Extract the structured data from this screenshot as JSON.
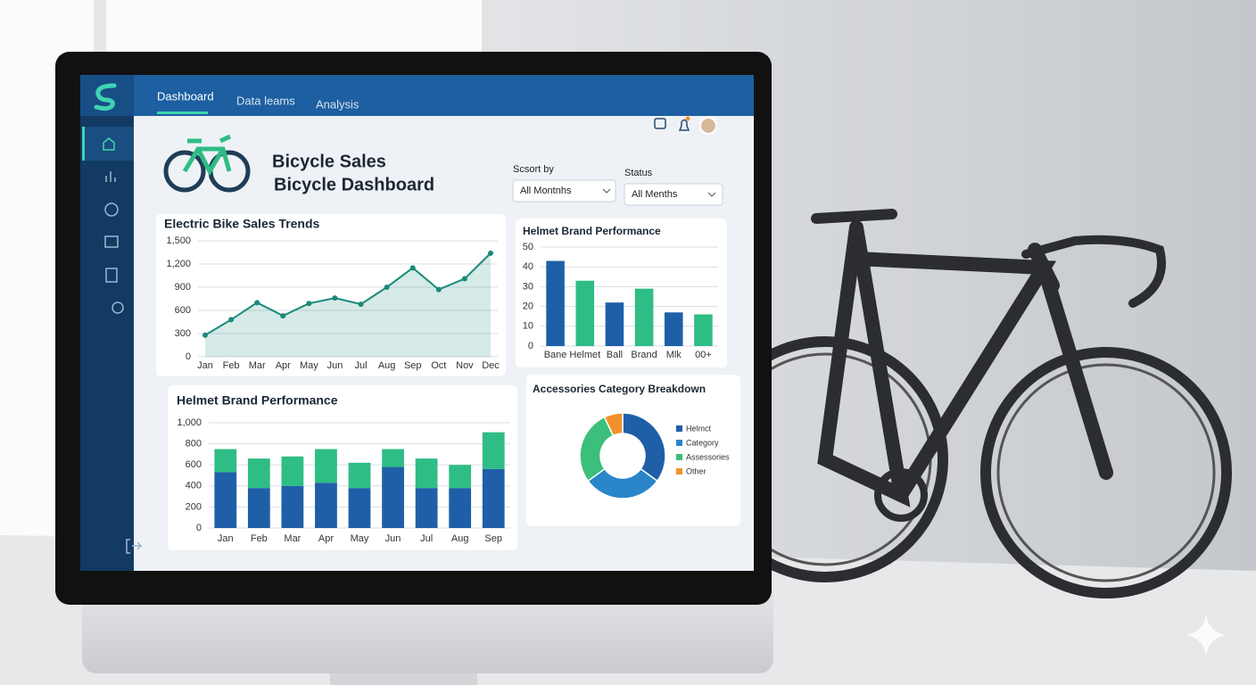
{
  "nav": {
    "tabs": [
      "Dashboard",
      "Data leams",
      "Analysis"
    ]
  },
  "header": {
    "title": "Bicycle Sales",
    "subtitle": "Bicycle Dashboard"
  },
  "filters": [
    {
      "label": "Scsort by",
      "value": "All Montnhs"
    },
    {
      "label": "Status",
      "value": "All Menths"
    }
  ],
  "chart_data": [
    {
      "type": "area",
      "title": "Electric Bike Sales Trends",
      "color": "#1b8a7a",
      "categories": [
        "Jan",
        "Feb",
        "Mar",
        "Apr",
        "May",
        "Jun",
        "Jul",
        "Aug",
        "Sep",
        "Oct",
        "Nov",
        "Dec"
      ],
      "values": [
        280,
        480,
        700,
        530,
        690,
        760,
        680,
        900,
        1150,
        870,
        1010,
        1340
      ],
      "ylim": [
        0,
        1500
      ],
      "yticks": [
        0,
        300,
        600,
        900,
        {
          "value": 1200,
          "label": "1,200"
        },
        {
          "value": 1500,
          "label": "1,500"
        }
      ],
      "grid": true
    },
    {
      "type": "bar",
      "title": "Helmet Brand Performance",
      "categories": [
        "Bane",
        "Helmet",
        "Ball",
        "Brand",
        "Mlk",
        "00+"
      ],
      "values": [
        43,
        33,
        22,
        29,
        17,
        16
      ],
      "colors": [
        "#1f5fa8",
        "#2ebd85",
        "#1f5fa8",
        "#2ebd85",
        "#1f5fa8",
        "#2ebd85"
      ],
      "ylim": [
        0,
        50
      ],
      "yticks": [
        0,
        10,
        20,
        30,
        40,
        50
      ],
      "grid": true
    },
    {
      "type": "stacked-bar",
      "title": "Helmet Brand Performance",
      "categories": [
        "Jan",
        "Feb",
        "Mar",
        "Apr",
        "May",
        "Jun",
        "Jul",
        "Aug",
        "Sep"
      ],
      "series": [
        {
          "color": "#1f5fa8",
          "values": [
            530,
            380,
            400,
            430,
            380,
            580,
            380,
            380,
            560
          ]
        },
        {
          "color": "#2ebd85",
          "values": [
            220,
            280,
            280,
            320,
            240,
            170,
            280,
            220,
            350
          ]
        }
      ],
      "ylim": [
        0,
        1000
      ],
      "yticks": [
        0,
        200,
        400,
        600,
        800,
        {
          "value": 1000,
          "label": "1,000"
        }
      ],
      "grid": true
    },
    {
      "type": "donut",
      "title": "Accessories Category Breakdown",
      "categories": [
        "Helmct",
        "Category",
        "Assessories",
        "Other"
      ],
      "values": [
        35,
        30,
        28,
        7
      ],
      "colors": [
        "#1f5fa8",
        "#2a86c9",
        "#3cbf7a",
        "#f0922b"
      ],
      "legend": "right"
    }
  ]
}
